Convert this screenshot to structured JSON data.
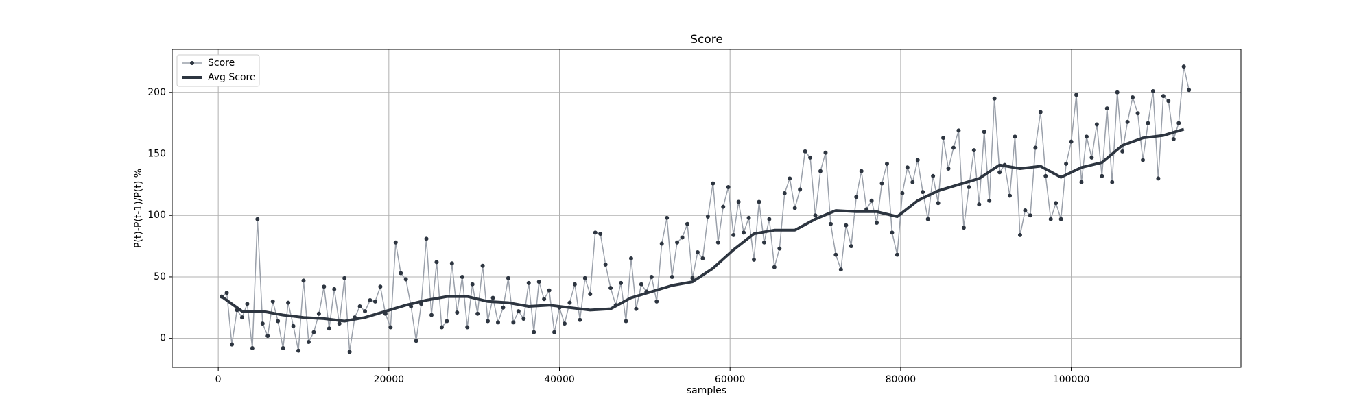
{
  "chart_data": {
    "type": "line",
    "title": "Score",
    "x_label": "samples",
    "y_label": "P(t)-P(t-1)/P(t) %",
    "xlim": [
      -5400,
      119900
    ],
    "ylim": [
      -23.6,
      235
    ],
    "xticks": [
      0,
      20000,
      40000,
      60000,
      80000,
      100000
    ],
    "yticks": [
      0,
      50,
      100,
      150,
      200
    ],
    "grid": true,
    "legend": "upper left",
    "series": [
      {
        "name": "Score",
        "color": "#9aa0aa",
        "marker_color": "#2d3540",
        "markers": true,
        "line_width": 1.5,
        "x_start": 400,
        "x_step": 600,
        "values": [
          34,
          37,
          -5,
          23,
          17,
          28,
          -8,
          97,
          12,
          2,
          30,
          14,
          -8,
          29,
          10,
          -10,
          47,
          -3,
          5,
          20,
          42,
          8,
          40,
          12,
          49,
          -11,
          17,
          26,
          22,
          31,
          30,
          42,
          20,
          9,
          78,
          53,
          48,
          26,
          -2,
          28,
          81,
          19,
          62,
          9,
          14,
          61,
          21,
          50,
          9,
          44,
          20,
          59,
          14,
          33,
          13,
          25,
          49,
          13,
          22,
          16,
          45,
          5,
          46,
          32,
          39,
          5,
          25,
          12,
          29,
          44,
          15,
          49,
          36,
          86,
          85,
          60,
          41,
          27,
          45,
          14,
          65,
          24,
          44,
          38,
          50,
          30,
          77,
          98,
          50,
          78,
          82,
          93,
          49,
          70,
          65,
          99,
          126,
          78,
          107,
          123,
          84,
          111,
          86,
          98,
          64,
          111,
          78,
          97,
          58,
          73,
          118,
          130,
          106,
          121,
          152,
          147,
          100,
          136,
          151,
          93,
          68,
          56,
          92,
          75,
          115,
          136,
          105,
          112,
          94,
          126,
          142,
          86,
          68,
          118,
          139,
          127,
          145,
          119,
          97,
          132,
          110,
          163,
          138,
          155,
          169,
          90,
          123,
          153,
          109,
          168,
          112,
          195,
          135,
          141,
          116,
          164,
          84,
          104,
          100,
          155,
          184,
          132,
          97,
          110,
          97,
          142,
          160,
          198,
          127,
          164,
          147,
          174,
          132,
          187,
          127,
          200,
          152,
          176,
          196,
          183,
          145,
          175,
          201,
          130,
          197,
          193,
          162,
          175,
          221,
          202
        ]
      },
      {
        "name": "Avg Score",
        "color": "#2d3540",
        "markers": false,
        "line_width": 4,
        "x_start": 400,
        "x_step": 2400,
        "values": [
          34,
          22,
          22,
          19,
          17,
          16,
          14,
          17,
          22,
          27,
          31,
          34,
          34,
          30,
          29,
          26,
          27,
          25,
          23,
          24,
          33,
          38,
          43,
          46,
          57,
          72,
          85,
          88,
          88,
          97,
          104,
          103,
          103,
          99,
          112,
          120,
          125,
          130,
          141,
          138,
          140,
          131,
          139,
          143,
          157,
          163,
          165,
          170
        ]
      }
    ]
  }
}
